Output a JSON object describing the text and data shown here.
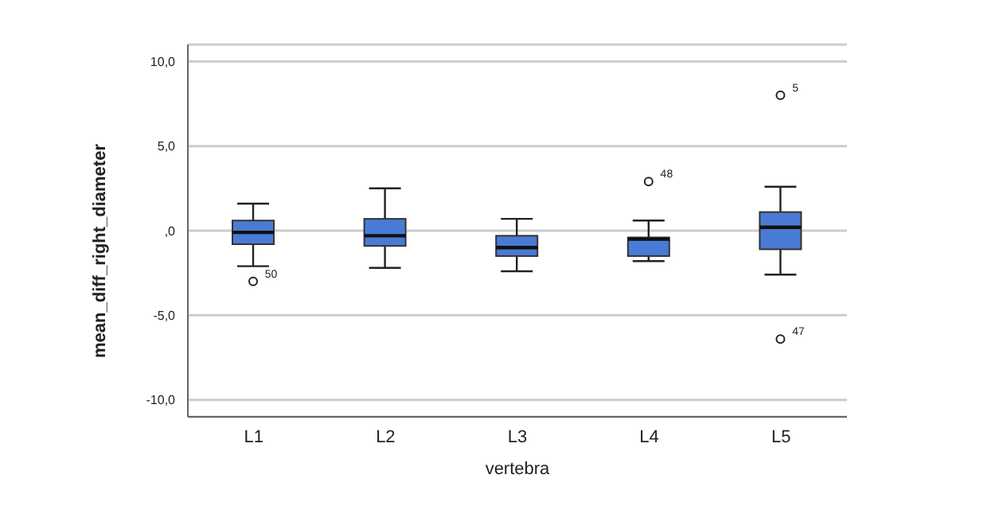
{
  "chart_data": {
    "type": "box",
    "xlabel": "vertebra",
    "ylabel": "mean_diff_right_diameter",
    "categories": [
      "L1",
      "L2",
      "L3",
      "L4",
      "L5"
    ],
    "boxes": [
      {
        "low": -2.1,
        "q1": -0.8,
        "median": -0.1,
        "q3": 0.6,
        "high": 1.6,
        "outliers": [
          -3.0
        ]
      },
      {
        "low": -2.2,
        "q1": -0.9,
        "median": -0.3,
        "q3": 0.7,
        "high": 2.5
      },
      {
        "low": -2.4,
        "q1": -1.5,
        "median": -1.0,
        "q3": -0.3,
        "high": 0.7
      },
      {
        "low": -1.8,
        "q1": -1.5,
        "median": -0.5,
        "q3": -0.4,
        "high": 0.6,
        "outliers": [
          2.9
        ]
      },
      {
        "low": -2.6,
        "q1": -1.1,
        "median": 0.2,
        "q3": 1.1,
        "high": 2.6,
        "outliers": [
          8.0,
          -6.4
        ]
      }
    ],
    "color": "#4a7bd4",
    "ylim": [
      -11,
      11
    ],
    "yticks": [
      {
        "value": -10,
        "label": "-10,0"
      },
      {
        "value": -5,
        "label": "-5,0"
      },
      {
        "value": 0,
        "label": ",0"
      },
      {
        "value": 5,
        "label": "5,0"
      },
      {
        "value": 10,
        "label": "10,0"
      }
    ],
    "grid": "y",
    "annotations": [
      "50",
      "48",
      "5",
      "47"
    ]
  }
}
